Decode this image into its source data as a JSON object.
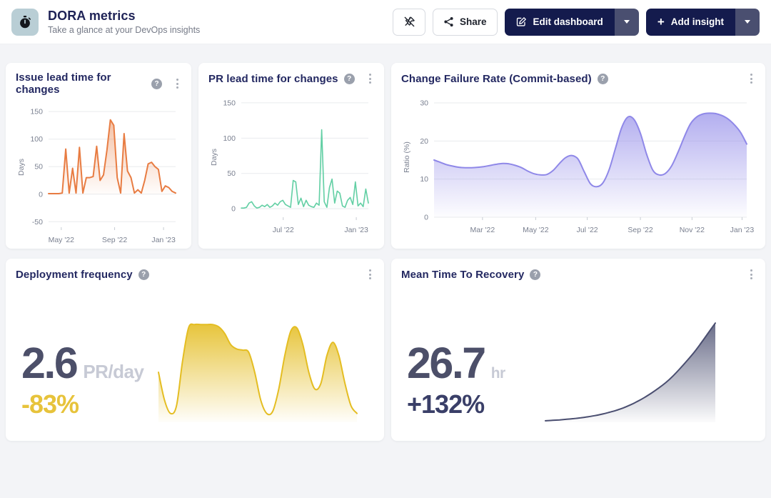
{
  "header": {
    "title": "DORA metrics",
    "subtitle": "Take a glance at your DevOps insights",
    "buttons": {
      "share": "Share",
      "edit": "Edit dashboard",
      "add": "Add insight"
    }
  },
  "cards": {
    "issue_lead": {
      "title": "Issue lead time for changes"
    },
    "pr_lead": {
      "title": "PR lead time for changes"
    },
    "cfr": {
      "title": "Change Failure Rate (Commit-based)"
    },
    "deploy_freq": {
      "title": "Deployment frequency",
      "value": "2.6",
      "unit": "PR/day",
      "delta": "-83%",
      "delta_style": "color:#e7c33b"
    },
    "mttr": {
      "title": "Mean Time To Recovery",
      "value": "26.7",
      "unit": "hr",
      "delta": "+132%",
      "delta_style": "color:#3a3f68"
    }
  },
  "chart_data": [
    {
      "type": "area",
      "title": "Issue lead time for changes",
      "ylabel": "Days",
      "ylim": [
        -60,
        158
      ],
      "base": 0,
      "smooth": false,
      "color": "#e87c42",
      "fill_opacity": 0.55,
      "stroke": 2,
      "grid": true,
      "y_ticks": [
        150,
        100,
        50,
        0,
        -50
      ],
      "x_ticks": [
        {
          "pos": 0.1,
          "label": "May '22"
        },
        {
          "pos": 0.52,
          "label": "Sep '22"
        },
        {
          "pos": 0.905,
          "label": "Jan '23"
        }
      ],
      "values": [
        1,
        1,
        1,
        1,
        2,
        82,
        2,
        47,
        2,
        85,
        2,
        30,
        30,
        32,
        87,
        25,
        35,
        80,
        135,
        125,
        30,
        2,
        110,
        42,
        30,
        2,
        8,
        2,
        25,
        55,
        58,
        50,
        45,
        5,
        15,
        12,
        5,
        2
      ],
      "margins": {
        "l": 46,
        "r": 8,
        "t": 12,
        "b": 26
      }
    },
    {
      "type": "area",
      "title": "PR lead time for changes",
      "ylabel": "Days",
      "ylim": [
        -12,
        158
      ],
      "base": 0,
      "smooth": false,
      "color": "#62cfa4",
      "fill_opacity": 0.22,
      "stroke": 1.6,
      "grid": true,
      "y_ticks": [
        150,
        100,
        50,
        0
      ],
      "x_ticks": [
        {
          "pos": 0.33,
          "label": "Jul '22"
        },
        {
          "pos": 0.905,
          "label": "Jan '23"
        }
      ],
      "values": [
        1,
        1,
        2,
        8,
        10,
        4,
        1,
        2,
        5,
        3,
        6,
        2,
        4,
        8,
        5,
        10,
        12,
        6,
        4,
        2,
        40,
        38,
        6,
        15,
        3,
        12,
        5,
        3,
        2,
        8,
        5,
        112,
        10,
        2,
        30,
        42,
        8,
        25,
        22,
        4,
        2,
        12,
        16,
        6,
        38,
        4,
        8,
        3,
        28,
        8
      ],
      "margins": {
        "l": 46,
        "r": 8,
        "t": 12,
        "b": 26
      }
    },
    {
      "type": "area",
      "title": "Change Failure Rate (Commit-based)",
      "ylabel": "Ratio (%)",
      "ylim": [
        0,
        31.5
      ],
      "base": 0,
      "smooth": true,
      "color": "#8f88e8",
      "fill_opacity": 0.78,
      "stroke": 2,
      "grid": true,
      "y_ticks": [
        30,
        20,
        10,
        0
      ],
      "x_ticks": [
        {
          "pos": 0.155,
          "label": "Mar '22"
        },
        {
          "pos": 0.325,
          "label": "May '22"
        },
        {
          "pos": 0.49,
          "label": "Jul '22"
        },
        {
          "pos": 0.66,
          "label": "Sep '22"
        },
        {
          "pos": 0.825,
          "label": "Nov '22"
        },
        {
          "pos": 0.985,
          "label": "Jan '23"
        }
      ],
      "values": [
        15,
        14.4,
        13.8,
        13.4,
        13.1,
        13,
        13,
        13.1,
        13.3,
        13.6,
        13.9,
        14.1,
        14,
        13.6,
        13,
        12.1,
        11.4,
        11.1,
        11.2,
        12.2,
        14,
        15.6,
        16.2,
        15.3,
        12,
        8.8,
        8,
        9,
        12.5,
        18,
        23.5,
        26.3,
        25.6,
        22,
        16.5,
        12.3,
        11.1,
        11.5,
        13.5,
        17,
        21,
        24.5,
        26.3,
        27.1,
        27.3,
        27.2,
        26.7,
        25.8,
        24.3,
        22.3,
        19.2
      ],
      "margins": {
        "l": 46,
        "r": 12,
        "t": 12,
        "b": 26
      }
    },
    {
      "type": "area",
      "title": "Deployment frequency",
      "value": 2.6,
      "unit": "PR/day",
      "delta_pct": -83,
      "ylim": [
        0,
        92
      ],
      "base": 0,
      "smooth": true,
      "color": "#e4bd22",
      "fill_opacity": 0.92,
      "stroke": 2,
      "grid": false,
      "values": [
        45,
        20,
        8,
        15,
        55,
        85,
        88,
        88,
        88,
        88,
        86,
        80,
        70,
        66,
        65,
        63,
        45,
        20,
        8,
        10,
        30,
        60,
        82,
        85,
        70,
        45,
        30,
        35,
        60,
        72,
        60,
        35,
        15,
        8
      ],
      "margins": {
        "l": 2,
        "r": 2,
        "t": 5,
        "b": 2
      }
    },
    {
      "type": "area",
      "title": "Mean Time To Recovery",
      "value": 26.7,
      "unit": "hr",
      "delta_pct": 132,
      "ylim": [
        0,
        103
      ],
      "base": 0,
      "smooth": true,
      "color": "#4a4e70",
      "fill_opacity": 0.85,
      "stroke": 2,
      "grid": false,
      "values": [
        1.5,
        2,
        2.4,
        3,
        3.7,
        4.5,
        5.5,
        6.7,
        8.2,
        10,
        12,
        14.5,
        17.5,
        21,
        25,
        29.5,
        34.5,
        40,
        46.5,
        54,
        62,
        70.5,
        80,
        90,
        100
      ],
      "margins": {
        "l": 2,
        "r": 2,
        "t": 5,
        "b": 2
      }
    }
  ]
}
